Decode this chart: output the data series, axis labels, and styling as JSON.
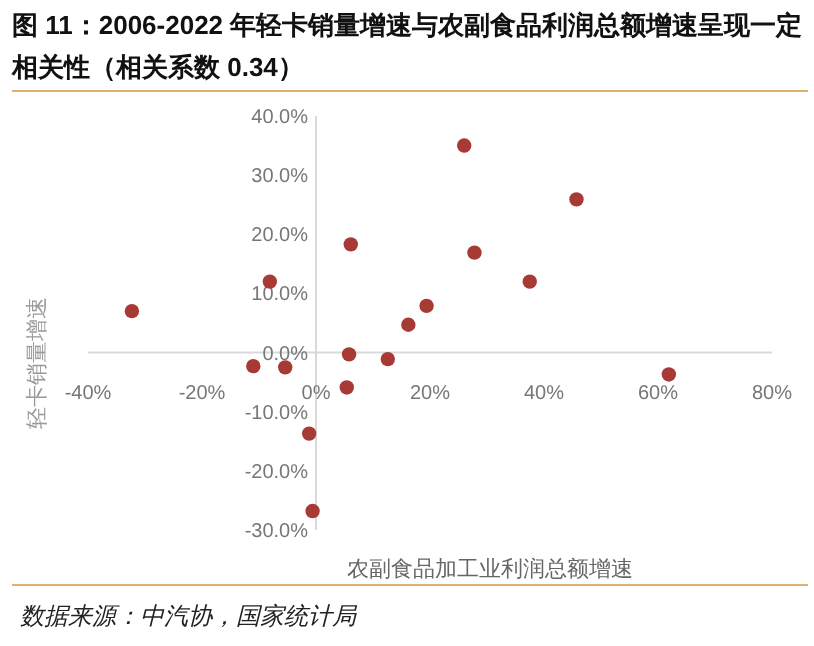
{
  "chart_data": {
    "type": "scatter",
    "title": "图 11：2006-2022 年轻卡销量增速与农副食品利润总额增速呈现一定相关性（相关系数 0.34）",
    "xlabel": "农副食品加工业利润总额增速",
    "ylabel": "轻卡销量增速",
    "annotations": [
      "数据来源：中汽协，国家统计局"
    ],
    "x": [
      -32.3,
      -8.1,
      6.1,
      -11.0,
      -5.4,
      5.8,
      5.4,
      12.6,
      16.2,
      19.4,
      -1.2,
      -0.6,
      26.0,
      45.7,
      27.8,
      37.5,
      61.9
    ],
    "series": [
      {
        "color": "#a83a36",
        "values": [
          7.0,
          12.0,
          18.3,
          -2.3,
          -2.5,
          -0.3,
          -5.9,
          -1.1,
          4.7,
          7.9,
          -13.7,
          -26.8,
          35.0,
          25.9,
          16.9,
          12.0,
          -3.7
        ]
      }
    ],
    "marker": "circle",
    "xlim": [
      -40,
      80
    ],
    "ylim": [
      -30,
      40
    ],
    "xticks": [
      {
        "value": -40,
        "label": "-40%"
      },
      {
        "value": -20,
        "label": "-20%"
      },
      {
        "value": 0,
        "label": "0%"
      },
      {
        "value": 20,
        "label": "20%"
      },
      {
        "value": 40,
        "label": "40%"
      },
      {
        "value": 60,
        "label": "60%"
      },
      {
        "value": 80,
        "label": "80%"
      }
    ],
    "yticks": [
      {
        "value": -30,
        "label": "-30.0%"
      },
      {
        "value": -20,
        "label": "-20.0%"
      },
      {
        "value": -10,
        "label": "-10.0%"
      },
      {
        "value": 0,
        "label": "0.0%"
      },
      {
        "value": 10,
        "label": "10.0%"
      },
      {
        "value": 20,
        "label": "20.0%"
      },
      {
        "value": 30,
        "label": "30.0%"
      },
      {
        "value": 40,
        "label": "40.0%"
      }
    ]
  }
}
